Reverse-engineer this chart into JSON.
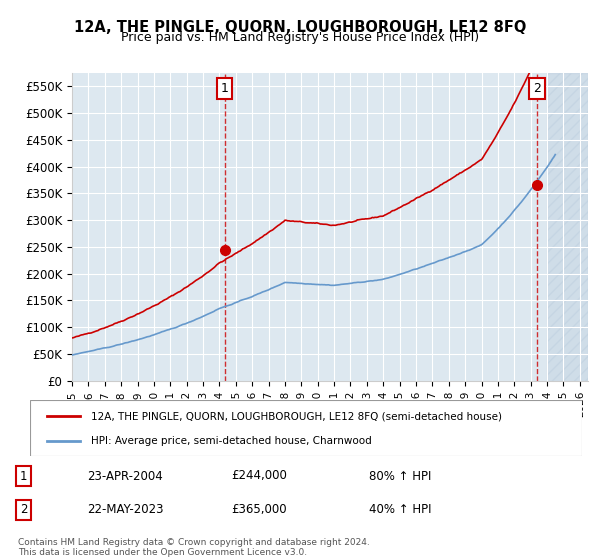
{
  "title": "12A, THE PINGLE, QUORN, LOUGHBOROUGH, LE12 8FQ",
  "subtitle": "Price paid vs. HM Land Registry's House Price Index (HPI)",
  "ylabel": "",
  "xlabel": "",
  "ylim": [
    0,
    575000
  ],
  "yticks": [
    0,
    50000,
    100000,
    150000,
    200000,
    250000,
    300000,
    350000,
    400000,
    450000,
    500000,
    550000
  ],
  "ytick_labels": [
    "£0",
    "£50K",
    "£100K",
    "£150K",
    "£200K",
    "£250K",
    "£300K",
    "£350K",
    "£400K",
    "£450K",
    "£500K",
    "£550K"
  ],
  "xlim_start": 1995.0,
  "xlim_end": 2026.5,
  "xticks": [
    1995,
    1996,
    1997,
    1998,
    1999,
    2000,
    2001,
    2002,
    2003,
    2004,
    2005,
    2006,
    2007,
    2008,
    2009,
    2010,
    2011,
    2012,
    2013,
    2014,
    2015,
    2016,
    2017,
    2018,
    2019,
    2020,
    2021,
    2022,
    2023,
    2024,
    2025,
    2026
  ],
  "bg_color": "#dde8f0",
  "plot_bg_color": "#dde8f0",
  "line1_color": "#cc0000",
  "line2_color": "#6699cc",
  "sale1_x": 2004.31,
  "sale1_y": 244000,
  "sale1_label": "1",
  "sale2_x": 2023.39,
  "sale2_y": 365000,
  "sale2_label": "2",
  "marker_color": "#cc0000",
  "annotation_box_color": "#cc0000",
  "legend_line1": "12A, THE PINGLE, QUORN, LOUGHBOROUGH, LE12 8FQ (semi-detached house)",
  "legend_line2": "HPI: Average price, semi-detached house, Charnwood",
  "table_row1": [
    "1",
    "23-APR-2004",
    "£244,000",
    "80% ↑ HPI"
  ],
  "table_row2": [
    "2",
    "22-MAY-2023",
    "£365,000",
    "40% ↑ HPI"
  ],
  "footnote": "Contains HM Land Registry data © Crown copyright and database right 2024.\nThis data is licensed under the Open Government Licence v3.0.",
  "hatch_start": 2024.0
}
